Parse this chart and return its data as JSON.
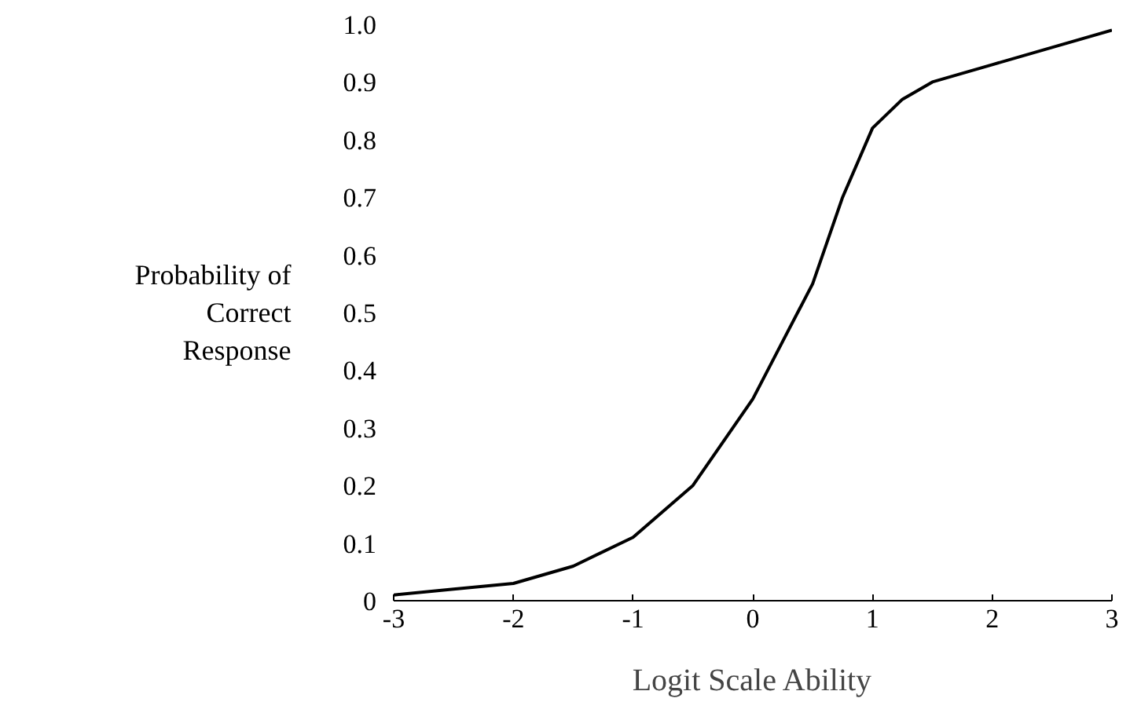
{
  "chart_data": {
    "type": "line",
    "xlabel": "Logit Scale Ability",
    "ylabel": "Probability of\nCorrect\nResponse",
    "x": [
      -3,
      -2.5,
      -2,
      -1.5,
      -1,
      -0.5,
      0,
      0.25,
      0.5,
      0.75,
      1,
      1.25,
      1.5,
      2,
      2.5,
      3
    ],
    "series": [
      {
        "color": "#000000",
        "values": [
          0.01,
          0.02,
          0.03,
          0.06,
          0.11,
          0.2,
          0.35,
          0.45,
          0.55,
          0.7,
          0.82,
          0.87,
          0.9,
          0.93,
          0.96,
          0.99
        ]
      }
    ],
    "xlim": [
      -3,
      3
    ],
    "ylim": [
      0,
      1
    ],
    "xticks": [
      -3,
      -2,
      -1,
      0,
      1,
      2,
      3
    ],
    "yticks": [
      0,
      0.1,
      0.2,
      0.3,
      0.4,
      0.5,
      0.6,
      0.7,
      0.8,
      0.9,
      {
        "value": 1,
        "label": "1.0"
      }
    ],
    "grid": false,
    "marker": "none",
    "line_style": "solid"
  }
}
